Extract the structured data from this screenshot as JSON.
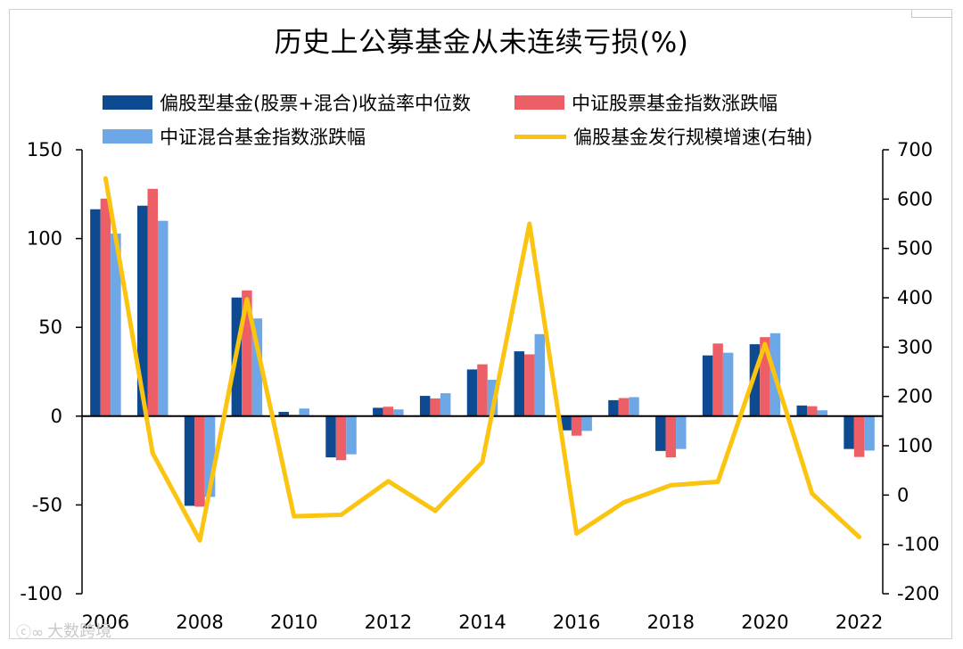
{
  "title": "历史上公募基金从未连续亏损(%)",
  "watermark": {
    "text": "大数跨境",
    "icon": "wechat-mark-icon"
  },
  "chart_data": {
    "type": "bar+line",
    "title": "历史上公募基金从未连续亏损(%)",
    "categories": [
      "2006",
      "2007",
      "2008",
      "2009",
      "2010",
      "2011",
      "2012",
      "2013",
      "2014",
      "2015",
      "2016",
      "2017",
      "2018",
      "2019",
      "2020",
      "2021",
      "2022"
    ],
    "x_tick_labels": [
      "2006",
      "2008",
      "2010",
      "2012",
      "2014",
      "2016",
      "2018",
      "2020",
      "2022"
    ],
    "y_left": {
      "lim": [
        -100,
        150
      ],
      "ticks": [
        -100,
        -50,
        0,
        50,
        100,
        150
      ]
    },
    "y_right": {
      "lim": [
        -200,
        700
      ],
      "ticks": [
        -200,
        -100,
        0,
        100,
        200,
        300,
        400,
        500,
        600,
        700
      ]
    },
    "grid": false,
    "legend_position": "top",
    "series": [
      {
        "name": "偏股型基金(股票+混合)收益率中位数",
        "kind": "bar",
        "axis": "left",
        "color": "#0d4a8f",
        "values": [
          116.5,
          118.5,
          -50.5,
          66.8,
          2.4,
          -23.2,
          4.7,
          11.4,
          26.3,
          36.5,
          -8.0,
          9.0,
          -19.6,
          34.2,
          40.5,
          6.0,
          -18.5
        ]
      },
      {
        "name": "中证股票基金指数涨跌幅",
        "kind": "bar",
        "axis": "left",
        "color": "#ec5f66",
        "values": [
          122.5,
          128.0,
          -51.0,
          70.8,
          0.8,
          -24.8,
          5.3,
          10.0,
          29.2,
          34.8,
          -11.0,
          10.2,
          -23.2,
          40.9,
          44.5,
          5.6,
          -23.0
        ]
      },
      {
        "name": "中证混合基金指数涨跌幅",
        "kind": "bar",
        "axis": "left",
        "color": "#6ea7e6",
        "values": [
          102.8,
          110.0,
          -45.5,
          55.0,
          4.3,
          -21.5,
          3.8,
          12.9,
          20.5,
          46.2,
          -8.3,
          10.7,
          -18.5,
          35.7,
          46.7,
          3.3,
          -19.4
        ]
      },
      {
        "name": "偏股基金发行规模增速(右轴)",
        "kind": "line",
        "axis": "right",
        "color": "#fbc410",
        "values": [
          642,
          85,
          -92,
          397,
          -43,
          -40,
          28,
          -32,
          67,
          550,
          -78,
          -15,
          20,
          27,
          306,
          3,
          -85
        ]
      }
    ]
  }
}
